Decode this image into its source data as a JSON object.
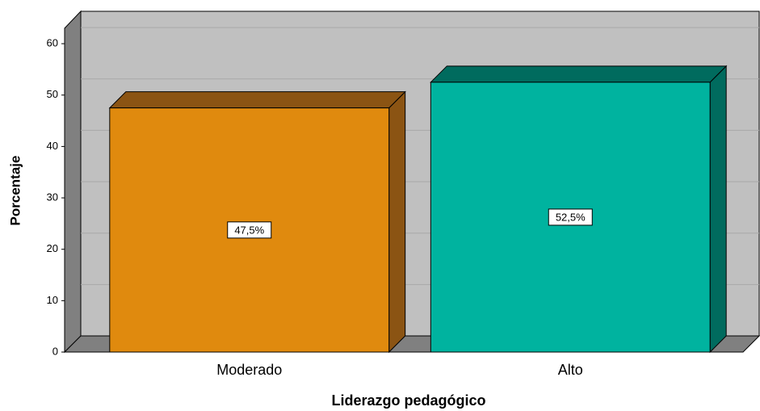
{
  "chart_data": {
    "type": "bar3d",
    "categories": [
      "Moderado",
      "Alto"
    ],
    "values": [
      47.5,
      52.5
    ],
    "value_labels": [
      "47,5%",
      "52,5%"
    ],
    "colors": [
      "#e08a0e",
      "#00b39f"
    ],
    "shade_colors": [
      "#8b5413",
      "#006b5e"
    ],
    "ylim": [
      0,
      63
    ],
    "yticks": [
      0,
      10,
      20,
      30,
      40,
      50,
      60
    ],
    "grid": true,
    "ylabel": "Porcentaje",
    "xlabel": "Liderazgo pedagógico"
  }
}
